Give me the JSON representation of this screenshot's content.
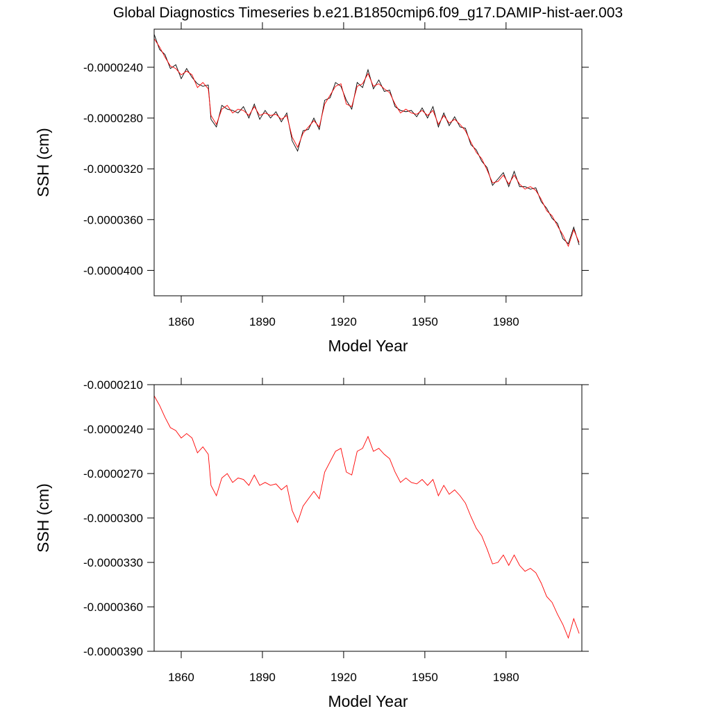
{
  "chart_data": [
    {
      "type": "line",
      "title": "Global Diagnostics Timeseries b.e21.B1850cmip6.f09_g17.DAMIP-hist-aer.003",
      "xlabel": "Model Year",
      "ylabel": "SSH (cm)",
      "xlim": [
        1850,
        2008
      ],
      "xticks": [
        1860,
        1890,
        1920,
        1950,
        1980
      ],
      "ylim": [
        -4.2e-05,
        -2.1e-05
      ],
      "yticks": [
        {
          "value": -2.4e-05,
          "label": "-0.0000240"
        },
        {
          "value": -2.8e-05,
          "label": "-0.0000280"
        },
        {
          "value": -3.2e-05,
          "label": "-0.0000320"
        },
        {
          "value": -3.6e-05,
          "label": "-0.0000360"
        },
        {
          "value": -4e-05,
          "label": "-0.0000400"
        }
      ],
      "series": [
        {
          "color": "#000000",
          "x": [
            1850,
            1852,
            1854,
            1856,
            1858,
            1860,
            1862,
            1864,
            1866,
            1868,
            1870,
            1871,
            1873,
            1875,
            1877,
            1879,
            1881,
            1883,
            1885,
            1887,
            1889,
            1891,
            1893,
            1895,
            1897,
            1899,
            1901,
            1903,
            1905,
            1907,
            1909,
            1911,
            1913,
            1915,
            1917,
            1919,
            1921,
            1923,
            1925,
            1927,
            1929,
            1931,
            1933,
            1935,
            1937,
            1939,
            1941,
            1943,
            1945,
            1947,
            1949,
            1951,
            1953,
            1955,
            1957,
            1959,
            1961,
            1963,
            1965,
            1967,
            1969,
            1971,
            1973,
            1975,
            1977,
            1979,
            1981,
            1983,
            1985,
            1987,
            1989,
            1991,
            1993,
            1995,
            1997,
            1999,
            2001,
            2003,
            2005,
            2007
          ],
          "values": [
            -2.14e-05,
            -2.26e-05,
            -2.3e-05,
            -2.41e-05,
            -2.38e-05,
            -2.49e-05,
            -2.41e-05,
            -2.48e-05,
            -2.53e-05,
            -2.55e-05,
            -2.54e-05,
            -2.81e-05,
            -2.87e-05,
            -2.7e-05,
            -2.73e-05,
            -2.74e-05,
            -2.76e-05,
            -2.71e-05,
            -2.8e-05,
            -2.69e-05,
            -2.81e-05,
            -2.74e-05,
            -2.8e-05,
            -2.75e-05,
            -2.83e-05,
            -2.76e-05,
            -2.98e-05,
            -3.06e-05,
            -2.9e-05,
            -2.89e-05,
            -2.8e-05,
            -2.89e-05,
            -2.66e-05,
            -2.64e-05,
            -2.52e-05,
            -2.55e-05,
            -2.66e-05,
            -2.73e-05,
            -2.52e-05,
            -2.56e-05,
            -2.42e-05,
            -2.57e-05,
            -2.5e-05,
            -2.59e-05,
            -2.58e-05,
            -2.71e-05,
            -2.74e-05,
            -2.75e-05,
            -2.74e-05,
            -2.79e-05,
            -2.72e-05,
            -2.8e-05,
            -2.71e-05,
            -2.87e-05,
            -2.76e-05,
            -2.86e-05,
            -2.79e-05,
            -2.87e-05,
            -2.88e-05,
            -3.01e-05,
            -3.05e-05,
            -3.14e-05,
            -3.19e-05,
            -3.33e-05,
            -3.28e-05,
            -3.23e-05,
            -3.34e-05,
            -3.22e-05,
            -3.34e-05,
            -3.34e-05,
            -3.36e-05,
            -3.35e-05,
            -3.46e-05,
            -3.51e-05,
            -3.59e-05,
            -3.63e-05,
            -3.75e-05,
            -3.79e-05,
            -3.66e-05,
            -3.8e-05
          ]
        },
        {
          "color": "#ff0000",
          "x": [
            1850,
            1852,
            1854,
            1856,
            1858,
            1860,
            1862,
            1864,
            1866,
            1868,
            1870,
            1871,
            1873,
            1875,
            1877,
            1879,
            1881,
            1883,
            1885,
            1887,
            1889,
            1891,
            1893,
            1895,
            1897,
            1899,
            1901,
            1903,
            1905,
            1907,
            1909,
            1911,
            1913,
            1915,
            1917,
            1919,
            1921,
            1923,
            1925,
            1927,
            1929,
            1931,
            1933,
            1935,
            1937,
            1939,
            1941,
            1943,
            1945,
            1947,
            1949,
            1951,
            1953,
            1955,
            1957,
            1959,
            1961,
            1963,
            1965,
            1967,
            1969,
            1971,
            1973,
            1975,
            1977,
            1979,
            1981,
            1983,
            1985,
            1987,
            1989,
            1991,
            1993,
            1995,
            1997,
            1999,
            2001,
            2003,
            2005,
            2007
          ],
          "values": [
            -2.175e-05,
            -2.24e-05,
            -2.32e-05,
            -2.39e-05,
            -2.41e-05,
            -2.46e-05,
            -2.43e-05,
            -2.46e-05,
            -2.56e-05,
            -2.52e-05,
            -2.57e-05,
            -2.78e-05,
            -2.85e-05,
            -2.73e-05,
            -2.7e-05,
            -2.76e-05,
            -2.73e-05,
            -2.74e-05,
            -2.78e-05,
            -2.71e-05,
            -2.78e-05,
            -2.76e-05,
            -2.78e-05,
            -2.77e-05,
            -2.81e-05,
            -2.78e-05,
            -2.95e-05,
            -3.03e-05,
            -2.92e-05,
            -2.87e-05,
            -2.82e-05,
            -2.87e-05,
            -2.69e-05,
            -2.62e-05,
            -2.55e-05,
            -2.53e-05,
            -2.69e-05,
            -2.71e-05,
            -2.55e-05,
            -2.53e-05,
            -2.45e-05,
            -2.55e-05,
            -2.53e-05,
            -2.57e-05,
            -2.6e-05,
            -2.69e-05,
            -2.76e-05,
            -2.73e-05,
            -2.76e-05,
            -2.77e-05,
            -2.74e-05,
            -2.78e-05,
            -2.74e-05,
            -2.85e-05,
            -2.78e-05,
            -2.84e-05,
            -2.81e-05,
            -2.85e-05,
            -2.9e-05,
            -2.99e-05,
            -3.07e-05,
            -3.12e-05,
            -3.21e-05,
            -3.31e-05,
            -3.3e-05,
            -3.25e-05,
            -3.32e-05,
            -3.25e-05,
            -3.32e-05,
            -3.36e-05,
            -3.34e-05,
            -3.37e-05,
            -3.44e-05,
            -3.53e-05,
            -3.57e-05,
            -3.65e-05,
            -3.72e-05,
            -3.81e-05,
            -3.68e-05,
            -3.78e-05
          ]
        }
      ]
    },
    {
      "type": "line",
      "xlabel": "Model Year",
      "ylabel": "SSH (cm)",
      "xlim": [
        1850,
        2008
      ],
      "xticks": [
        1860,
        1890,
        1920,
        1950,
        1980
      ],
      "ylim": [
        -3.9e-05,
        -2.1e-05
      ],
      "yticks": [
        {
          "value": -2.1e-05,
          "label": "-0.0000210"
        },
        {
          "value": -2.4e-05,
          "label": "-0.0000240"
        },
        {
          "value": -2.7e-05,
          "label": "-0.0000270"
        },
        {
          "value": -3e-05,
          "label": "-0.0000300"
        },
        {
          "value": -3.3e-05,
          "label": "-0.0000330"
        },
        {
          "value": -3.6e-05,
          "label": "-0.0000360"
        },
        {
          "value": -3.9e-05,
          "label": "-0.0000390"
        }
      ],
      "series": [
        {
          "color": "#ff0000",
          "x": [
            1850,
            1852,
            1854,
            1856,
            1858,
            1860,
            1862,
            1864,
            1866,
            1868,
            1870,
            1871,
            1873,
            1875,
            1877,
            1879,
            1881,
            1883,
            1885,
            1887,
            1889,
            1891,
            1893,
            1895,
            1897,
            1899,
            1901,
            1903,
            1905,
            1907,
            1909,
            1911,
            1913,
            1915,
            1917,
            1919,
            1921,
            1923,
            1925,
            1927,
            1929,
            1931,
            1933,
            1935,
            1937,
            1939,
            1941,
            1943,
            1945,
            1947,
            1949,
            1951,
            1953,
            1955,
            1957,
            1959,
            1961,
            1963,
            1965,
            1967,
            1969,
            1971,
            1973,
            1975,
            1977,
            1979,
            1981,
            1983,
            1985,
            1987,
            1989,
            1991,
            1993,
            1995,
            1997,
            1999,
            2001,
            2003,
            2005,
            2007
          ],
          "values": [
            -2.175e-05,
            -2.24e-05,
            -2.32e-05,
            -2.39e-05,
            -2.41e-05,
            -2.46e-05,
            -2.43e-05,
            -2.46e-05,
            -2.56e-05,
            -2.52e-05,
            -2.57e-05,
            -2.78e-05,
            -2.85e-05,
            -2.73e-05,
            -2.7e-05,
            -2.76e-05,
            -2.73e-05,
            -2.74e-05,
            -2.78e-05,
            -2.71e-05,
            -2.78e-05,
            -2.76e-05,
            -2.78e-05,
            -2.77e-05,
            -2.81e-05,
            -2.78e-05,
            -2.95e-05,
            -3.03e-05,
            -2.92e-05,
            -2.87e-05,
            -2.82e-05,
            -2.87e-05,
            -2.69e-05,
            -2.62e-05,
            -2.55e-05,
            -2.53e-05,
            -2.69e-05,
            -2.71e-05,
            -2.55e-05,
            -2.53e-05,
            -2.45e-05,
            -2.55e-05,
            -2.53e-05,
            -2.57e-05,
            -2.6e-05,
            -2.69e-05,
            -2.76e-05,
            -2.73e-05,
            -2.76e-05,
            -2.77e-05,
            -2.74e-05,
            -2.78e-05,
            -2.74e-05,
            -2.85e-05,
            -2.78e-05,
            -2.84e-05,
            -2.81e-05,
            -2.85e-05,
            -2.9e-05,
            -2.99e-05,
            -3.07e-05,
            -3.12e-05,
            -3.21e-05,
            -3.31e-05,
            -3.3e-05,
            -3.25e-05,
            -3.32e-05,
            -3.25e-05,
            -3.32e-05,
            -3.36e-05,
            -3.34e-05,
            -3.37e-05,
            -3.44e-05,
            -3.53e-05,
            -3.57e-05,
            -3.65e-05,
            -3.72e-05,
            -3.81e-05,
            -3.68e-05,
            -3.78e-05
          ]
        }
      ]
    }
  ]
}
